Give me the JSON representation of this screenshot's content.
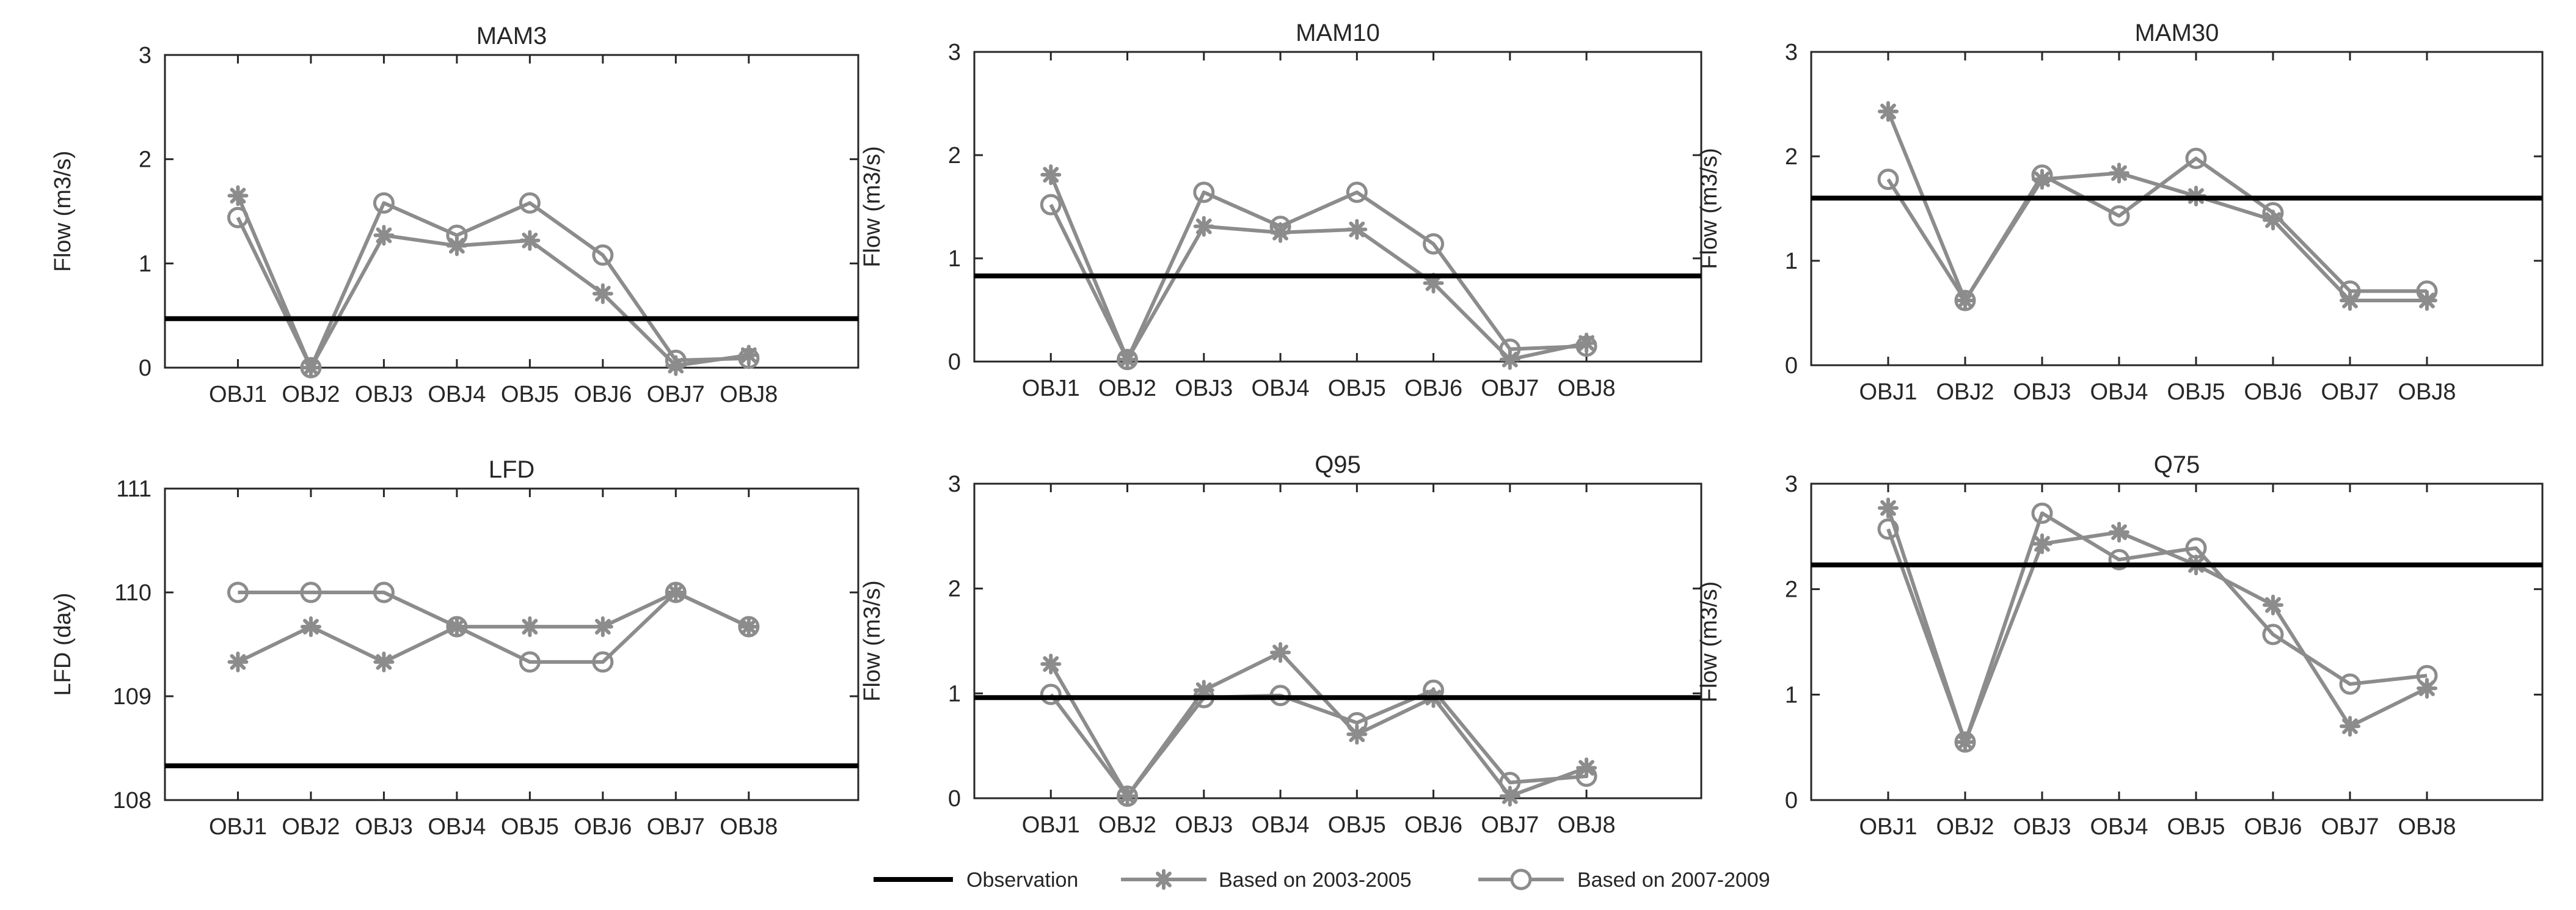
{
  "chart_data": [
    {
      "type": "line",
      "title": "MAM3",
      "ylabel": "Flow (m3/s)",
      "categories": [
        "OBJ1",
        "OBJ2",
        "OBJ3",
        "OBJ4",
        "OBJ5",
        "OBJ6",
        "OBJ7",
        "OBJ8"
      ],
      "ylim": [
        0,
        3
      ],
      "yticks": [
        0,
        1,
        2,
        3
      ],
      "observation": 0.47,
      "series": [
        {
          "name": "Based on 2003-2005",
          "values": [
            1.65,
            0.0,
            1.27,
            1.17,
            1.22,
            0.71,
            0.02,
            0.12
          ]
        },
        {
          "name": "Based on 2007-2009",
          "values": [
            1.44,
            0.0,
            1.58,
            1.27,
            1.58,
            1.08,
            0.07,
            0.09
          ]
        }
      ]
    },
    {
      "type": "line",
      "title": "MAM10",
      "ylabel": "Flow (m3/s)",
      "categories": [
        "OBJ1",
        "OBJ2",
        "OBJ3",
        "OBJ4",
        "OBJ5",
        "OBJ6",
        "OBJ7",
        "OBJ8"
      ],
      "ylim": [
        0,
        3
      ],
      "yticks": [
        0,
        1,
        2,
        3
      ],
      "observation": 0.83,
      "series": [
        {
          "name": "Based on 2003-2005",
          "values": [
            1.81,
            0.02,
            1.31,
            1.25,
            1.28,
            0.76,
            0.02,
            0.18
          ]
        },
        {
          "name": "Based on 2007-2009",
          "values": [
            1.52,
            0.02,
            1.64,
            1.31,
            1.64,
            1.14,
            0.12,
            0.15
          ]
        }
      ]
    },
    {
      "type": "line",
      "title": "MAM30",
      "ylabel": "Flow (m3/s)",
      "categories": [
        "OBJ1",
        "OBJ2",
        "OBJ3",
        "OBJ4",
        "OBJ5",
        "OBJ6",
        "OBJ7",
        "OBJ8"
      ],
      "ylim": [
        0,
        3
      ],
      "yticks": [
        0,
        1,
        2,
        3
      ],
      "observation": 1.6,
      "series": [
        {
          "name": "Based on 2003-2005",
          "values": [
            2.43,
            0.62,
            1.78,
            1.84,
            1.62,
            1.39,
            0.62,
            0.62
          ]
        },
        {
          "name": "Based on 2007-2009",
          "values": [
            1.78,
            0.62,
            1.82,
            1.43,
            1.98,
            1.46,
            0.71,
            0.71
          ]
        }
      ]
    },
    {
      "type": "line",
      "title": "LFD",
      "ylabel": "LFD (day)",
      "categories": [
        "OBJ1",
        "OBJ2",
        "OBJ3",
        "OBJ4",
        "OBJ5",
        "OBJ6",
        "OBJ7",
        "OBJ8"
      ],
      "ylim": [
        108,
        111
      ],
      "yticks": [
        108,
        109,
        110,
        111
      ],
      "observation": 108.33,
      "series": [
        {
          "name": "Based on 2003-2005",
          "values": [
            109.33,
            109.67,
            109.33,
            109.67,
            109.67,
            109.67,
            110.0,
            109.67
          ]
        },
        {
          "name": "Based on 2007-2009",
          "values": [
            110.0,
            110.0,
            110.0,
            109.67,
            109.33,
            109.33,
            110.0,
            109.67
          ]
        }
      ]
    },
    {
      "type": "line",
      "title": "Q95",
      "ylabel": "Flow (m3/s)",
      "categories": [
        "OBJ1",
        "OBJ2",
        "OBJ3",
        "OBJ4",
        "OBJ5",
        "OBJ6",
        "OBJ7",
        "OBJ8"
      ],
      "ylim": [
        0,
        3
      ],
      "yticks": [
        0,
        1,
        2,
        3
      ],
      "observation": 0.96,
      "series": [
        {
          "name": "Based on 2003-2005",
          "values": [
            1.28,
            0.02,
            1.03,
            1.39,
            0.61,
            0.96,
            0.02,
            0.29
          ]
        },
        {
          "name": "Based on 2007-2009",
          "values": [
            0.99,
            0.02,
            0.96,
            0.98,
            0.72,
            1.03,
            0.15,
            0.21
          ]
        }
      ]
    },
    {
      "type": "line",
      "title": "Q75",
      "ylabel": "Flow (m3/s)",
      "categories": [
        "OBJ1",
        "OBJ2",
        "OBJ3",
        "OBJ4",
        "OBJ5",
        "OBJ6",
        "OBJ7",
        "OBJ8"
      ],
      "ylim": [
        0,
        3
      ],
      "yticks": [
        0,
        1,
        2,
        3
      ],
      "observation": 2.23,
      "series": [
        {
          "name": "Based on 2003-2005",
          "values": [
            2.77,
            0.55,
            2.43,
            2.54,
            2.23,
            1.85,
            0.7,
            1.06
          ]
        },
        {
          "name": "Based on 2007-2009",
          "values": [
            2.57,
            0.55,
            2.72,
            2.28,
            2.39,
            1.57,
            1.1,
            1.18
          ]
        }
      ]
    }
  ],
  "legend": {
    "observation_label": "Observation",
    "series1_label": "Based on 2003-2005",
    "series2_label": "Based on 2007-2009"
  },
  "colors": {
    "observation": "#000000",
    "series": "#8c8c8c",
    "axis": "#262626",
    "text": "#262626"
  }
}
